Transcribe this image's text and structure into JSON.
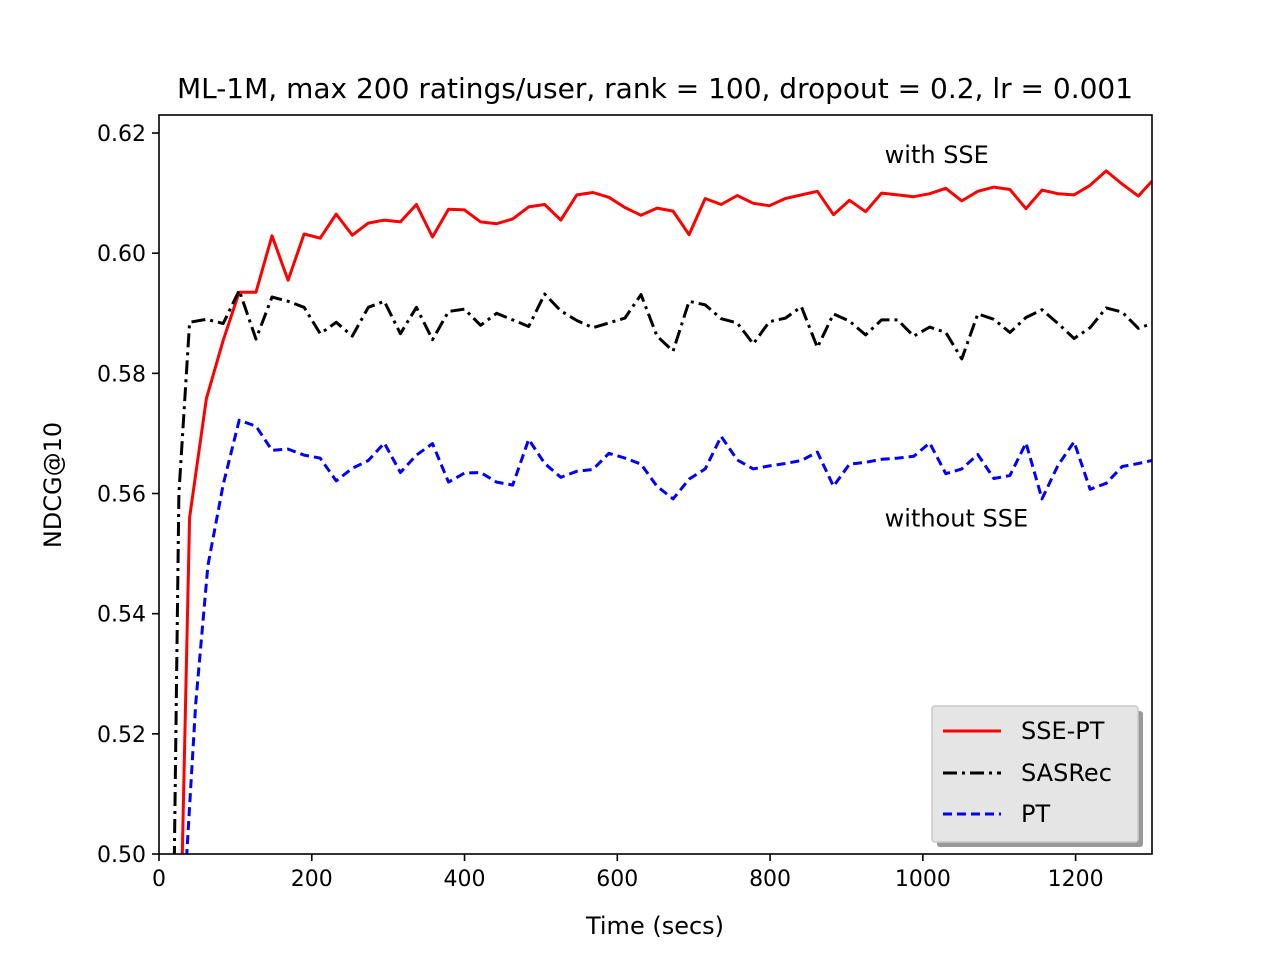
{
  "chart_data": {
    "type": "line",
    "title": "ML-1M, max 200 ratings/user, rank = 100, dropout = 0.2, lr = 0.001",
    "xlabel": "Time (secs)",
    "ylabel": "NDCG@10",
    "xlim": [
      0,
      1300
    ],
    "ylim": [
      0.5,
      0.623
    ],
    "xticks": [
      0,
      200,
      400,
      600,
      800,
      1000,
      1200
    ],
    "yticks": [
      0.5,
      0.52,
      0.54,
      0.56,
      0.58,
      0.6,
      0.62
    ],
    "grid": false,
    "legend_position": "lower-right",
    "annotations": [
      {
        "text": "with SSE",
        "x": 950,
        "y": 0.615
      },
      {
        "text": "without SSE",
        "x": 950,
        "y": 0.5545
      }
    ],
    "series": [
      {
        "name": "SSE-PT",
        "color": "#ff0000",
        "style": "solid",
        "x": [
          30,
          40,
          62,
          84,
          105,
          127,
          148,
          169,
          190,
          211,
          232,
          253,
          274,
          295,
          316,
          337,
          358,
          379,
          400,
          421,
          442,
          463,
          484,
          505,
          526,
          547,
          568,
          589,
          610,
          631,
          652,
          673,
          694,
          715,
          736,
          757,
          778,
          799,
          820,
          841,
          862,
          883,
          904,
          925,
          946,
          967,
          988,
          1009,
          1030,
          1051,
          1072,
          1093,
          1114,
          1135,
          1156,
          1177,
          1198,
          1219,
          1240,
          1261,
          1282,
          1300
        ],
        "y": [
          0.497,
          0.556,
          0.5758,
          0.5855,
          0.5935,
          0.5935,
          0.6029,
          0.5955,
          0.6032,
          0.6025,
          0.6065,
          0.603,
          0.605,
          0.6055,
          0.6052,
          0.6081,
          0.6027,
          0.6073,
          0.6072,
          0.6052,
          0.6049,
          0.6057,
          0.6077,
          0.6081,
          0.6055,
          0.6097,
          0.6101,
          0.6093,
          0.6076,
          0.6063,
          0.6075,
          0.607,
          0.6031,
          0.6091,
          0.6081,
          0.6096,
          0.6083,
          0.6079,
          0.6091,
          0.6097,
          0.6103,
          0.6064,
          0.6088,
          0.6069,
          0.61,
          0.6097,
          0.6094,
          0.6099,
          0.6108,
          0.6087,
          0.6103,
          0.611,
          0.6106,
          0.6074,
          0.6105,
          0.6099,
          0.6097,
          0.6113,
          0.6137,
          0.6115,
          0.6095,
          0.612
        ]
      },
      {
        "name": "SASRec",
        "color": "#000000",
        "style": "dashdot",
        "x": [
          20,
          26,
          40,
          62,
          84,
          105,
          127,
          148,
          169,
          190,
          211,
          232,
          253,
          274,
          295,
          316,
          337,
          358,
          379,
          400,
          421,
          442,
          463,
          484,
          505,
          526,
          547,
          568,
          589,
          610,
          631,
          652,
          673,
          694,
          715,
          736,
          757,
          778,
          799,
          820,
          841,
          862,
          883,
          904,
          925,
          946,
          967,
          988,
          1009,
          1030,
          1051,
          1072,
          1093,
          1114,
          1135,
          1156,
          1177,
          1198,
          1219,
          1240,
          1261,
          1282,
          1300
        ],
        "y": [
          0.499,
          0.56,
          0.5885,
          0.589,
          0.5883,
          0.5938,
          0.5857,
          0.5927,
          0.592,
          0.591,
          0.5866,
          0.5885,
          0.5862,
          0.591,
          0.592,
          0.5866,
          0.591,
          0.5856,
          0.5903,
          0.5907,
          0.588,
          0.59,
          0.5889,
          0.5878,
          0.5932,
          0.5904,
          0.5888,
          0.5876,
          0.5884,
          0.5892,
          0.5931,
          0.5862,
          0.5837,
          0.592,
          0.5914,
          0.5891,
          0.5884,
          0.5849,
          0.5886,
          0.5892,
          0.5911,
          0.5843,
          0.5899,
          0.5887,
          0.5864,
          0.5889,
          0.5889,
          0.5862,
          0.5877,
          0.5868,
          0.5824,
          0.5899,
          0.589,
          0.5868,
          0.5893,
          0.5906,
          0.5883,
          0.5858,
          0.5876,
          0.5909,
          0.5902,
          0.5875,
          0.5883
        ]
      },
      {
        "name": "PT",
        "color": "#0000ff",
        "style": "dashed",
        "x": [
          35,
          48,
          64,
          84,
          105,
          127,
          148,
          169,
          190,
          211,
          232,
          253,
          274,
          295,
          316,
          337,
          358,
          379,
          400,
          421,
          442,
          463,
          484,
          505,
          526,
          547,
          568,
          589,
          610,
          631,
          652,
          673,
          694,
          715,
          736,
          757,
          778,
          799,
          820,
          841,
          862,
          883,
          904,
          925,
          946,
          967,
          988,
          1009,
          1030,
          1051,
          1072,
          1093,
          1114,
          1135,
          1156,
          1177,
          1198,
          1219,
          1240,
          1261,
          1282,
          1300
        ],
        "y": [
          0.497,
          0.525,
          0.548,
          0.5615,
          0.5722,
          0.5712,
          0.5672,
          0.5674,
          0.5664,
          0.5659,
          0.5621,
          0.5642,
          0.5655,
          0.5684,
          0.5635,
          0.5664,
          0.5683,
          0.5619,
          0.5634,
          0.5635,
          0.5619,
          0.5614,
          0.569,
          0.565,
          0.5627,
          0.5637,
          0.564,
          0.5667,
          0.5659,
          0.5649,
          0.5612,
          0.5591,
          0.5624,
          0.5641,
          0.5695,
          0.5656,
          0.5641,
          0.5646,
          0.565,
          0.5655,
          0.5669,
          0.5612,
          0.5649,
          0.5652,
          0.5657,
          0.5659,
          0.5662,
          0.5684,
          0.5633,
          0.5641,
          0.5665,
          0.5625,
          0.563,
          0.5684,
          0.5591,
          0.5647,
          0.5686,
          0.5607,
          0.5617,
          0.5645,
          0.565,
          0.5655
        ]
      }
    ]
  }
}
